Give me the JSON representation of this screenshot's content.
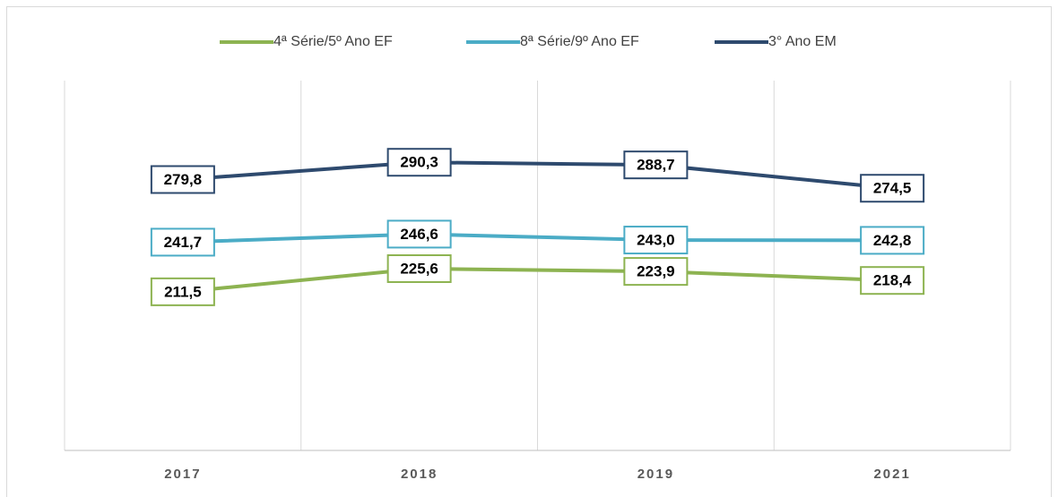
{
  "chart_data": {
    "type": "line",
    "categories": [
      "2017",
      "2018",
      "2019",
      "2021"
    ],
    "series": [
      {
        "name": "4ª Série/5º Ano EF",
        "color": "#8db351",
        "values": [
          211.5,
          225.6,
          223.9,
          218.4
        ],
        "value_labels": [
          "211,5",
          "225,6",
          "223,9",
          "218,4"
        ]
      },
      {
        "name": "8ª Série/9º Ano EF",
        "color": "#4bacc6",
        "values": [
          241.7,
          246.6,
          243.0,
          242.8
        ],
        "value_labels": [
          "241,7",
          "246,6",
          "243,0",
          "242,8"
        ]
      },
      {
        "name": "3° Ano EM",
        "color": "#2e4a6e",
        "values": [
          279.8,
          290.3,
          288.7,
          274.5
        ],
        "value_labels": [
          "279,8",
          "290,3",
          "288,7",
          "274,5"
        ]
      }
    ],
    "ylim": [
      115,
      340
    ],
    "grid": true,
    "legend": "top"
  }
}
